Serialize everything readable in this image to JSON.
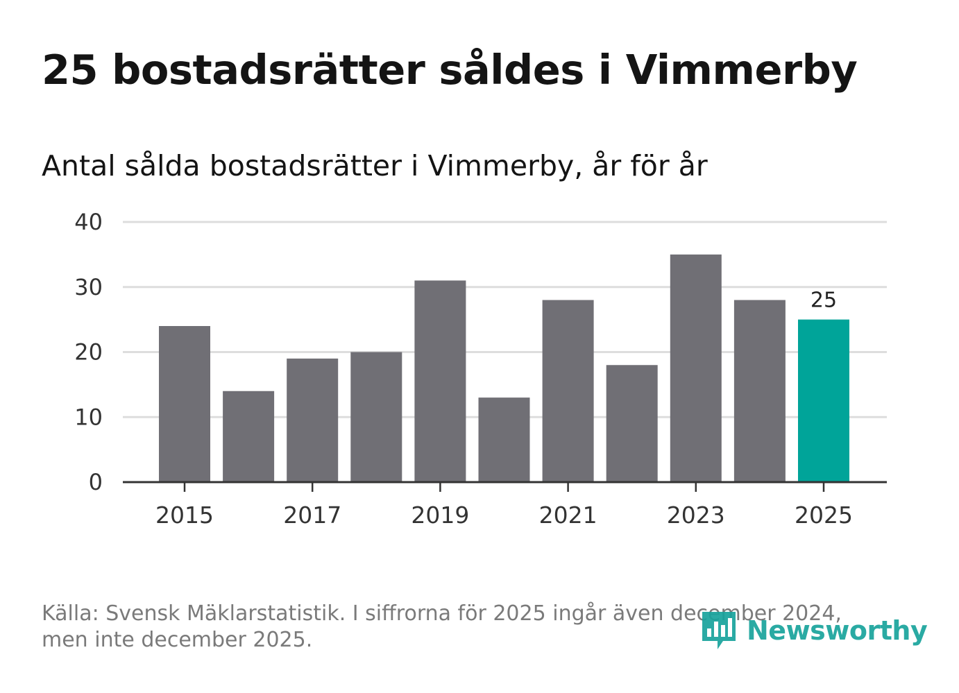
{
  "header": {
    "title": "25 bostadsrätter såldes i Vimmerby",
    "subtitle": "Antal sålda bostadsrätter i Vimmerby, år för år"
  },
  "chart_data": {
    "type": "bar",
    "title": "Antal sålda bostadsrätter i Vimmerby, år för år",
    "categories": [
      "2015",
      "2016",
      "2017",
      "2018",
      "2019",
      "2020",
      "2021",
      "2022",
      "2023",
      "2024",
      "2025"
    ],
    "values": [
      24,
      14,
      19,
      20,
      31,
      13,
      28,
      18,
      35,
      28,
      25
    ],
    "xtick_labels": [
      "2015",
      "2017",
      "2019",
      "2021",
      "2023",
      "2025"
    ],
    "ylim": [
      0,
      40
    ],
    "yticks": [
      0,
      10,
      20,
      30,
      40
    ],
    "xlabel": "",
    "ylabel": "",
    "grid": true,
    "highlight": {
      "category": "2025",
      "label": "25"
    },
    "colors": {
      "bar": "#706f75",
      "highlight": "#00a499",
      "grid": "#dddddd",
      "axis": "#333333"
    }
  },
  "footer": {
    "source_line1": "Källa: Svensk Mäklarstatistik. I siffrorna för 2025 ingår även december 2024,",
    "source_line2": "men inte december 2025.",
    "brand": "Newsworthy"
  }
}
